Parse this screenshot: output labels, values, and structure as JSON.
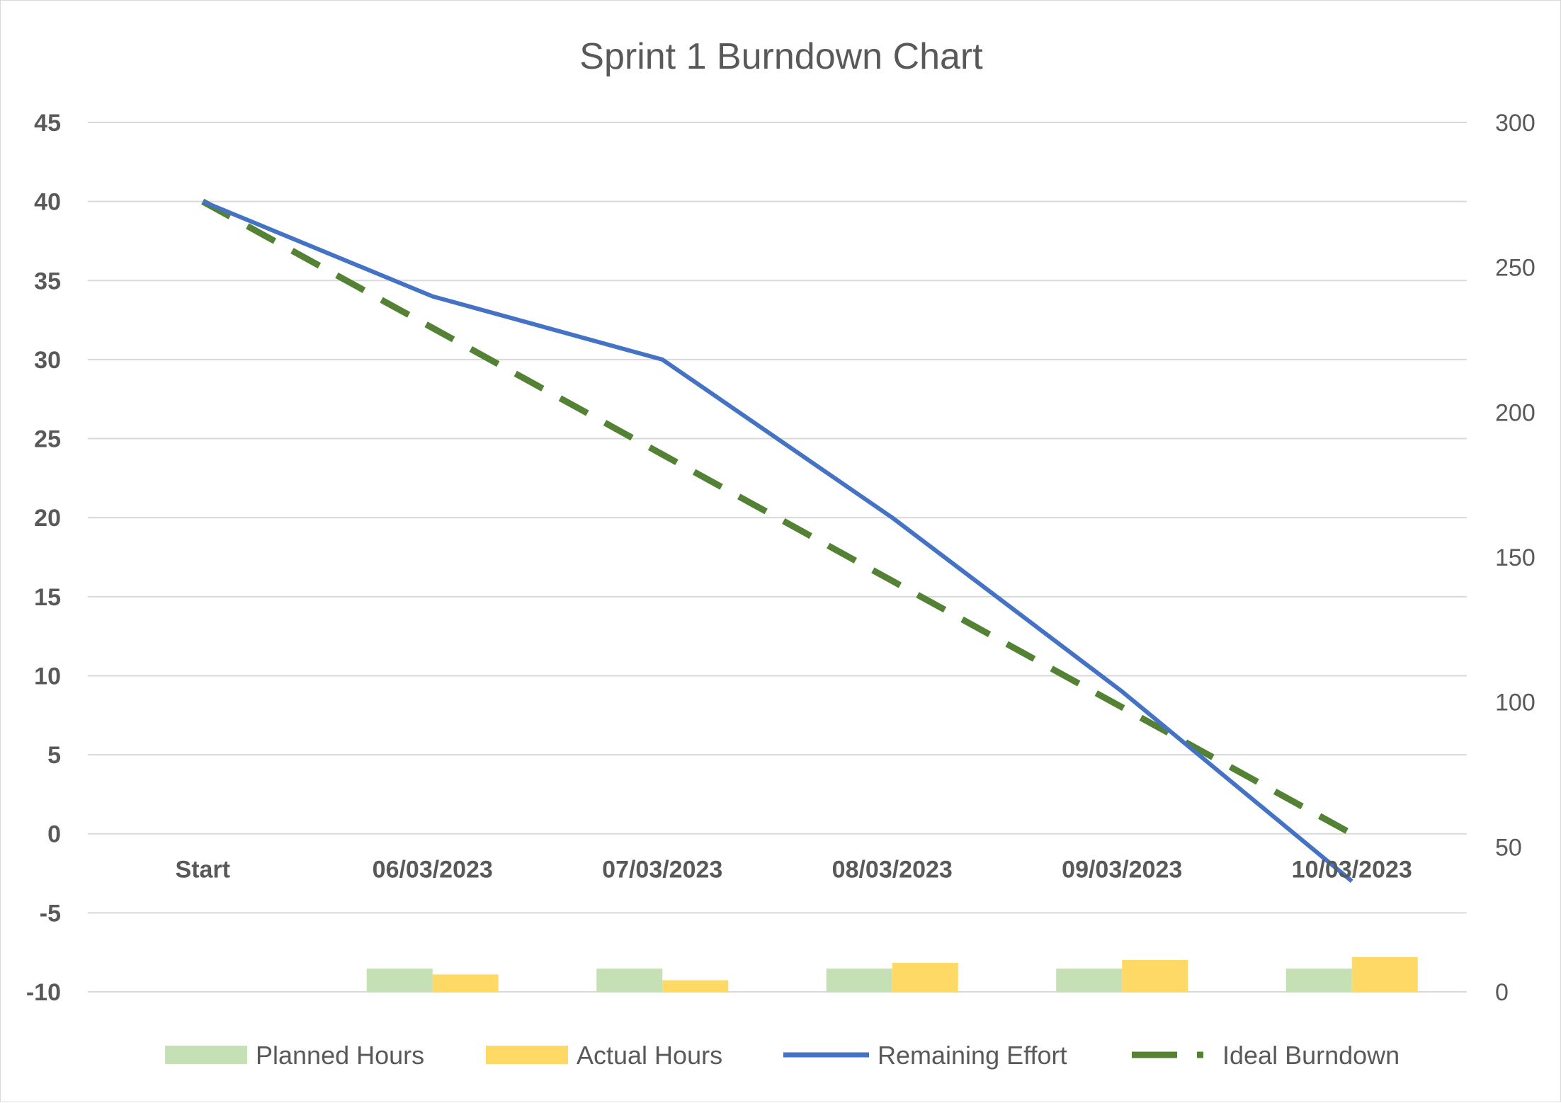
{
  "chart_data": {
    "type": "line",
    "title": "Sprint 1 Burndown Chart",
    "categories": [
      "Start",
      "06/03/2023",
      "07/03/2023",
      "08/03/2023",
      "09/03/2023",
      "10/03/2023"
    ],
    "y_left": {
      "ticks": [
        "45",
        "40",
        "35",
        "30",
        "25",
        "20",
        "15",
        "10",
        "5",
        "0",
        "-5",
        "-10"
      ],
      "range": [
        -10,
        45
      ]
    },
    "y_right": {
      "ticks": [
        "300",
        "250",
        "200",
        "150",
        "100",
        "50",
        "0"
      ],
      "range": [
        0,
        300
      ]
    },
    "grid": true,
    "legend_position": "bottom",
    "series": [
      {
        "name": "Planned Hours",
        "kind": "bar",
        "axis": "right",
        "color": "#c5e0b4",
        "values": [
          null,
          8,
          8,
          8,
          8,
          8
        ]
      },
      {
        "name": "Actual Hours",
        "kind": "bar",
        "axis": "right",
        "color": "#ffd966",
        "values": [
          null,
          6,
          4,
          10,
          11,
          12
        ]
      },
      {
        "name": "Remaining Effort",
        "kind": "line",
        "axis": "left",
        "color": "#4472c4",
        "values": [
          40,
          34,
          30,
          20,
          9,
          -3
        ]
      },
      {
        "name": "Ideal Burndown",
        "kind": "dashed-line",
        "axis": "left",
        "color": "#548235",
        "values": [
          40,
          32,
          24,
          16,
          8,
          0
        ]
      }
    ]
  }
}
